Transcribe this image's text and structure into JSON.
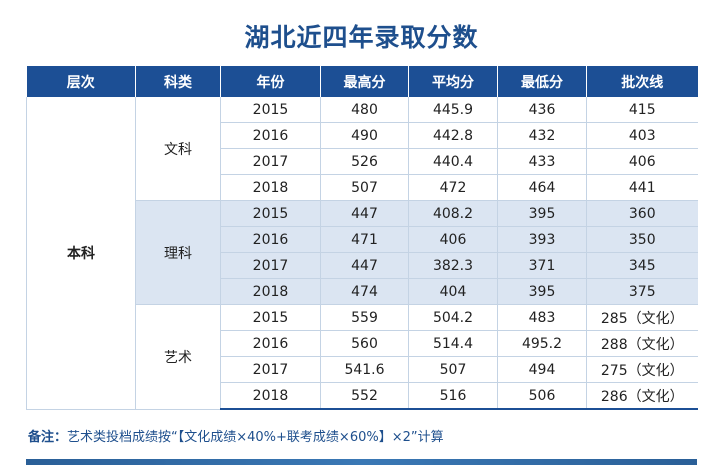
{
  "title": "湖北近四年录取分数",
  "headers": [
    "层次",
    "科类",
    "年份",
    "最高分",
    "平均分",
    "最低分",
    "批次线"
  ],
  "level": "本科",
  "groups": [
    {
      "subject": "文科",
      "rows": [
        [
          "2015",
          "480",
          "445.9",
          "436",
          "415"
        ],
        [
          "2016",
          "490",
          "442.8",
          "432",
          "403"
        ],
        [
          "2017",
          "526",
          "440.4",
          "433",
          "406"
        ],
        [
          "2018",
          "507",
          "472",
          "464",
          "441"
        ]
      ]
    },
    {
      "subject": "理科",
      "rows": [
        [
          "2015",
          "447",
          "408.2",
          "395",
          "360"
        ],
        [
          "2016",
          "471",
          "406",
          "393",
          "350"
        ],
        [
          "2017",
          "447",
          "382.3",
          "371",
          "345"
        ],
        [
          "2018",
          "474",
          "404",
          "395",
          "375"
        ]
      ]
    },
    {
      "subject": "艺术",
      "rows": [
        [
          "2015",
          "559",
          "504.2",
          "483",
          "285（文化）"
        ],
        [
          "2016",
          "560",
          "514.4",
          "495.2",
          "288（文化）"
        ],
        [
          "2017",
          "541.6",
          "507",
          "494",
          "275（文化）"
        ],
        [
          "2018",
          "552",
          "516",
          "506",
          "286（文化）"
        ]
      ]
    }
  ],
  "note": {
    "label": "备注：",
    "text": "艺术类投档成绩按“【文化成绩×40%+联考成绩×60%】×2”计算"
  },
  "colors": {
    "header_bg": "#1c4f95",
    "title": "#1e4f8d",
    "shade": "#dbe5f2"
  }
}
